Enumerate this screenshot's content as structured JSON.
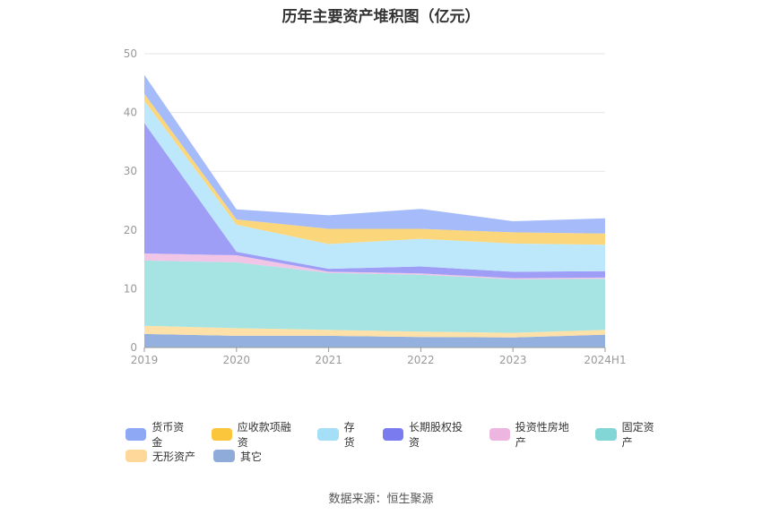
{
  "chart_data": {
    "type": "area",
    "stacked": true,
    "title": "历年主要资产堆积图（亿元）",
    "categories": [
      "2019",
      "2020",
      "2021",
      "2022",
      "2023",
      "2024H1"
    ],
    "ylim": [
      0,
      50
    ],
    "yticks": [
      0,
      10,
      20,
      30,
      40,
      50
    ],
    "grid": true,
    "legend_position": "bottom",
    "series": [
      {
        "name": "其它",
        "color": "#94b0de",
        "values": [
          2.3,
          2.0,
          2.0,
          1.8,
          1.7,
          2.2
        ]
      },
      {
        "name": "无形资产",
        "color": "#fde1a8",
        "values": [
          1.4,
          1.3,
          1.0,
          0.9,
          0.8,
          0.8
        ]
      },
      {
        "name": "固定资产",
        "color": "#a5e4e3",
        "values": [
          11.1,
          11.2,
          9.7,
          9.7,
          9.1,
          8.7
        ]
      },
      {
        "name": "投资性房地产",
        "color": "#f0c5e6",
        "values": [
          1.2,
          1.2,
          0.2,
          0.2,
          0.2,
          0.2
        ]
      },
      {
        "name": "长期股权投资",
        "color": "#9f9ef7",
        "values": [
          22.2,
          0.6,
          0.5,
          1.2,
          1.1,
          1.1
        ]
      },
      {
        "name": "存货",
        "color": "#bde8fb",
        "values": [
          3.8,
          4.6,
          4.2,
          4.7,
          4.8,
          4.5
        ]
      },
      {
        "name": "应收款项融资",
        "color": "#fcd67a",
        "values": [
          1.2,
          0.9,
          2.6,
          1.7,
          1.9,
          1.9
        ]
      },
      {
        "name": "货币资金",
        "color": "#a6bbf9",
        "values": [
          3.2,
          1.7,
          2.3,
          3.4,
          1.9,
          2.6
        ]
      }
    ]
  },
  "legend": {
    "items": [
      {
        "label": "货币资金",
        "color": "#8fa8f5"
      },
      {
        "label": "应收款项融资",
        "color": "#fbc53c"
      },
      {
        "label": "存货",
        "color": "#a5def7"
      },
      {
        "label": "长期股权投资",
        "color": "#7b7bf0"
      },
      {
        "label": "投资性房地产",
        "color": "#ecb6e0"
      },
      {
        "label": "固定资产",
        "color": "#82d6d5"
      },
      {
        "label": "无形资产",
        "color": "#fdd89a"
      },
      {
        "label": "其它",
        "color": "#8fabd9"
      }
    ]
  },
  "source": "数据来源：恒生聚源"
}
